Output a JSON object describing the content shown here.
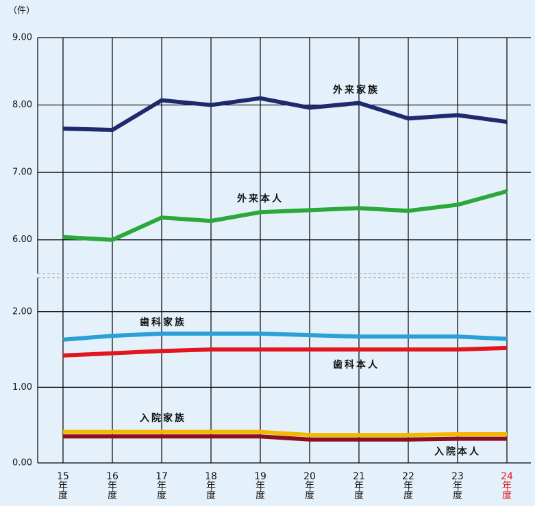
{
  "chart_data": {
    "type": "line",
    "unit_label": "（件）",
    "categories": [
      "15年度",
      "16年度",
      "17年度",
      "18年度",
      "19年度",
      "20年度",
      "21年度",
      "22年度",
      "23年度",
      "24年度"
    ],
    "category_label_colors": [
      "#111",
      "#111",
      "#111",
      "#111",
      "#111",
      "#111",
      "#111",
      "#111",
      "#111",
      "#e3151e"
    ],
    "y_segments": [
      {
        "ylim": [
          0,
          2.45
        ],
        "yticks": [
          {
            "value": 0,
            "label": "0.00"
          },
          {
            "value": 1,
            "label": "1.00"
          },
          {
            "value": 2,
            "label": "2.00"
          }
        ]
      },
      {
        "ylim": [
          5.5,
          9
        ],
        "yticks": [
          {
            "value": 6,
            "label": "6.00"
          },
          {
            "value": 7,
            "label": "7.00"
          },
          {
            "value": 8,
            "label": "8.00"
          },
          {
            "value": 9,
            "label": "9.00"
          }
        ]
      }
    ],
    "grid": true,
    "series": [
      {
        "name": "外来家族",
        "color": "#1f2a6e",
        "values": [
          7.65,
          7.63,
          8.07,
          8.0,
          8.1,
          7.96,
          8.03,
          7.8,
          7.85,
          7.75
        ]
      },
      {
        "name": "外来本人",
        "color": "#2aa83a",
        "values": [
          6.04,
          6.0,
          6.33,
          6.28,
          6.41,
          6.44,
          6.47,
          6.43,
          6.52,
          6.72
        ]
      },
      {
        "name": "歯科家族",
        "color": "#2a9fd8",
        "values": [
          1.63,
          1.68,
          1.71,
          1.71,
          1.71,
          1.69,
          1.67,
          1.67,
          1.67,
          1.64
        ]
      },
      {
        "name": "歯科本人",
        "color": "#e3151e",
        "values": [
          1.42,
          1.45,
          1.48,
          1.5,
          1.5,
          1.5,
          1.5,
          1.5,
          1.5,
          1.52
        ]
      },
      {
        "name": "入院家族",
        "color": "#f5b800",
        "values": [
          0.41,
          0.41,
          0.41,
          0.41,
          0.41,
          0.37,
          0.37,
          0.37,
          0.38,
          0.38
        ]
      },
      {
        "name": "入院本人",
        "color": "#8a1020",
        "values": [
          0.35,
          0.35,
          0.35,
          0.35,
          0.35,
          0.31,
          0.31,
          0.31,
          0.32,
          0.32
        ]
      }
    ]
  }
}
